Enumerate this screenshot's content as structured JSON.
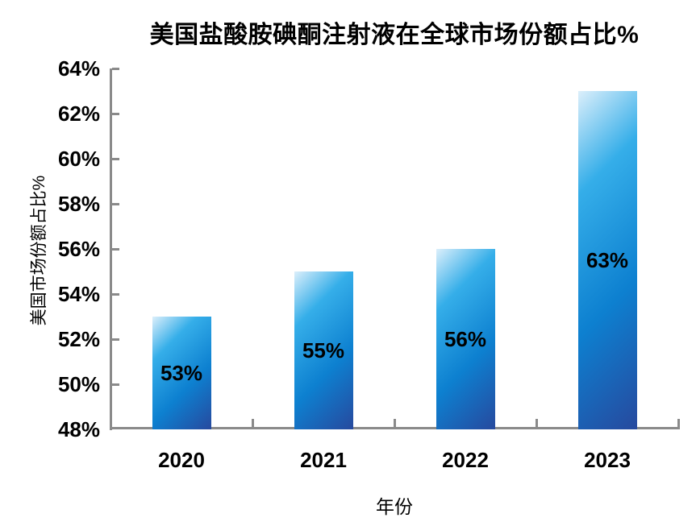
{
  "chart_data": {
    "type": "bar",
    "title": "美国盐酸胺碘酮注射液在全球市场份额占比%",
    "xlabel": "年份",
    "ylabel": "美国市场份额占比%",
    "categories": [
      "2020",
      "2021",
      "2022",
      "2023"
    ],
    "values": [
      53,
      55,
      56,
      63
    ],
    "data_labels": [
      "53%",
      "55%",
      "56%",
      "63%"
    ],
    "ylim": [
      48,
      64
    ],
    "ytick_step": 2,
    "ytick_labels": [
      "48%",
      "50%",
      "52%",
      "54%",
      "56%",
      "58%",
      "60%",
      "62%",
      "64%"
    ],
    "grid": false,
    "legend": "none",
    "data_label_position": "inside-center",
    "colors": {
      "bar_gradient_start": "#dceffb",
      "bar_gradient_light": "#35aee9",
      "bar_gradient_mid": "#0d80d0",
      "bar_gradient_end": "#27499e",
      "axis": "#8a8a8a",
      "text": "#000000",
      "background": "#ffffff"
    }
  }
}
